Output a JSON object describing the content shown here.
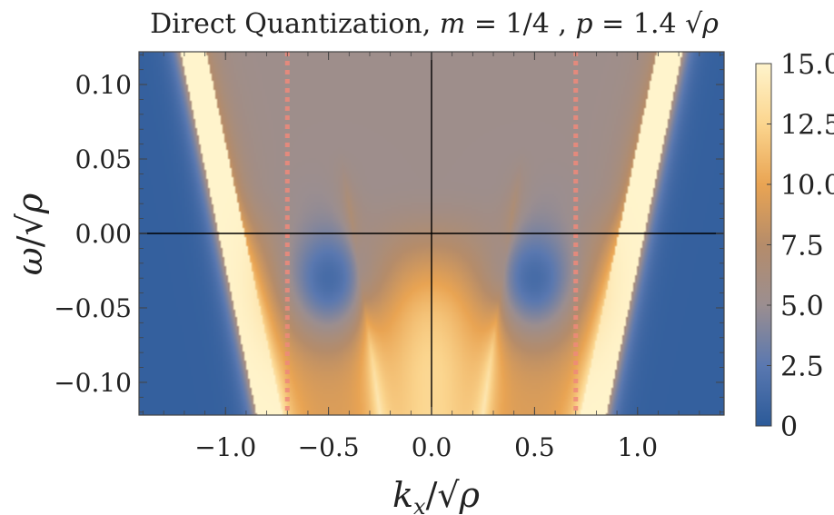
{
  "chart_data": {
    "type": "heatmap",
    "title_text": "Direct Quantization,",
    "title_params": {
      "m_label": "m",
      "m_value": "1/4",
      "p_label": "p",
      "p_value": "1.4",
      "rho_symbol": "ρ"
    },
    "xlabel": {
      "base": "k",
      "subscript": "x",
      "denom_symbol": "ρ"
    },
    "ylabel": {
      "base": "ω",
      "denom_symbol": "ρ"
    },
    "xlim": [
      -1.42,
      1.42
    ],
    "ylim": [
      -0.122,
      0.122
    ],
    "x_ticks": [
      {
        "value": -1.0,
        "label": "−1.0"
      },
      {
        "value": -0.5,
        "label": "−0.5"
      },
      {
        "value": 0.0,
        "label": "0.0"
      },
      {
        "value": 0.5,
        "label": "0.5"
      },
      {
        "value": 1.0,
        "label": "1.0"
      }
    ],
    "y_ticks": [
      {
        "value": 0.1,
        "label": "0.10"
      },
      {
        "value": 0.05,
        "label": "0.05"
      },
      {
        "value": 0.0,
        "label": "0.00"
      },
      {
        "value": -0.05,
        "label": "−0.05"
      },
      {
        "value": -0.1,
        "label": "−0.10"
      }
    ],
    "colorbar": {
      "min": 0,
      "max": 15,
      "ticks": [
        {
          "value": 0,
          "label": "0"
        },
        {
          "value": 2.5,
          "label": "2.5"
        },
        {
          "value": 5.0,
          "label": "5.0"
        },
        {
          "value": 7.5,
          "label": "7.5"
        },
        {
          "value": 10.0,
          "label": "10.0"
        },
        {
          "value": 12.5,
          "label": "12.5"
        },
        {
          "value": 15.0,
          "label": "15.0"
        }
      ],
      "colors": [
        "#2b5a99",
        "#5a78b0",
        "#9b8e90",
        "#b58c6a",
        "#e9a453",
        "#fbd58e",
        "#fff4cc"
      ]
    },
    "reference_lines": [
      {
        "axis": "x",
        "value": -0.7,
        "style": "dotted",
        "color": "#ee8a7a"
      },
      {
        "axis": "x",
        "value": 0.7,
        "style": "dotted",
        "color": "#ee8a7a"
      },
      {
        "axis": "x",
        "value": 0.0,
        "style": "solid",
        "color": "#000000"
      },
      {
        "axis": "y",
        "value": 0.0,
        "style": "solid",
        "color": "#000000"
      }
    ],
    "features": {
      "bright_band_linear": {
        "x_at_top": 1.17,
        "x_at_bottom": 0.8,
        "width": 0.14,
        "intensity": 15
      },
      "inner_parabola": {
        "x_at_top": 0.55,
        "x_at_bottom": 0.25,
        "intensity": 12
      },
      "blue_pockets": [
        {
          "x": 0.5,
          "y": -0.03,
          "rx": 0.24,
          "ry": 0.045,
          "intensity": 1.5
        },
        {
          "x": -0.5,
          "y": -0.03,
          "rx": 0.24,
          "ry": 0.045,
          "intensity": 1.5
        }
      ],
      "upper_region_intensity": 5.3,
      "outer_region_intensity": 0.5
    }
  }
}
